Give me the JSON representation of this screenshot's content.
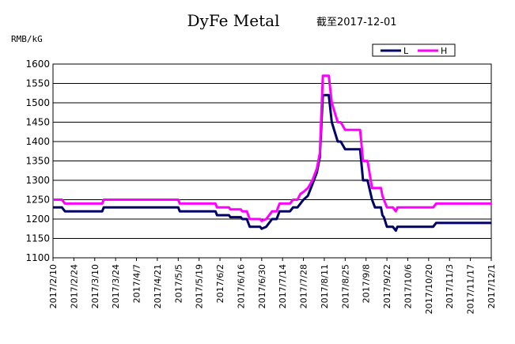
{
  "chart_data": {
    "type": "line",
    "title": "DyFe Metal",
    "subtitle": "截至2017-12-01",
    "ylabel": "RMB/kG",
    "ylim": [
      1100,
      1600
    ],
    "y_ticks": [
      "1600",
      "1550",
      "1500",
      "1450",
      "1400",
      "1350",
      "1300",
      "1250",
      "1200",
      "1150",
      "1100"
    ],
    "x_ticks": [
      "2017/2/10",
      "2017/2/24",
      "2017/3/10",
      "2017/3/24",
      "2017/4/7",
      "2017/4/21",
      "2017/5/5",
      "2017/5/19",
      "2017/6/2",
      "2017/6/16",
      "2017/6/30",
      "2017/7/14",
      "2017/7/28",
      "2017/8/11",
      "2017/8/25",
      "2017/9/8",
      "2017/9/22",
      "2017/10/6",
      "2017/10/20",
      "2017/11/3",
      "2017/11/17",
      "2017/12/1"
    ],
    "grid": "horizontal",
    "legend_position": "top-right",
    "series": [
      {
        "name": "L",
        "color": "#000066",
        "points": [
          [
            "2017/2/10",
            1230
          ],
          [
            "2017/2/16",
            1230
          ],
          [
            "2017/2/18",
            1220
          ],
          [
            "2017/3/15",
            1220
          ],
          [
            "2017/3/16",
            1230
          ],
          [
            "2017/5/5",
            1230
          ],
          [
            "2017/5/6",
            1220
          ],
          [
            "2017/5/30",
            1220
          ],
          [
            "2017/5/31",
            1210
          ],
          [
            "2017/6/8",
            1210
          ],
          [
            "2017/6/9",
            1205
          ],
          [
            "2017/6/16",
            1205
          ],
          [
            "2017/6/17",
            1200
          ],
          [
            "2017/6/20",
            1200
          ],
          [
            "2017/6/22",
            1180
          ],
          [
            "2017/6/29",
            1180
          ],
          [
            "2017/6/30",
            1175
          ],
          [
            "2017/7/3",
            1180
          ],
          [
            "2017/7/5",
            1190
          ],
          [
            "2017/7/7",
            1200
          ],
          [
            "2017/7/10",
            1200
          ],
          [
            "2017/7/12",
            1220
          ],
          [
            "2017/7/19",
            1220
          ],
          [
            "2017/7/21",
            1230
          ],
          [
            "2017/7/24",
            1230
          ],
          [
            "2017/7/26",
            1240
          ],
          [
            "2017/7/28",
            1250
          ],
          [
            "2017/7/31",
            1260
          ],
          [
            "2017/8/3",
            1290
          ],
          [
            "2017/8/6",
            1320
          ],
          [
            "2017/8/8",
            1360
          ],
          [
            "2017/8/10",
            1520
          ],
          [
            "2017/8/14",
            1520
          ],
          [
            "2017/8/16",
            1450
          ],
          [
            "2017/8/20",
            1400
          ],
          [
            "2017/8/22",
            1400
          ],
          [
            "2017/8/25",
            1380
          ],
          [
            "2017/9/4",
            1380
          ],
          [
            "2017/9/6",
            1300
          ],
          [
            "2017/9/9",
            1300
          ],
          [
            "2017/9/12",
            1250
          ],
          [
            "2017/9/14",
            1230
          ],
          [
            "2017/9/18",
            1230
          ],
          [
            "2017/9/19",
            1210
          ],
          [
            "2017/9/20",
            1205
          ],
          [
            "2017/9/22",
            1180
          ],
          [
            "2017/9/26",
            1180
          ],
          [
            "2017/9/28",
            1170
          ],
          [
            "2017/9/29",
            1180
          ],
          [
            "2017/10/23",
            1180
          ],
          [
            "2017/10/25",
            1190
          ],
          [
            "2017/12/1",
            1190
          ]
        ]
      },
      {
        "name": "H",
        "color": "#ff00ff",
        "points": [
          [
            "2017/2/10",
            1250
          ],
          [
            "2017/2/16",
            1250
          ],
          [
            "2017/2/18",
            1240
          ],
          [
            "2017/3/15",
            1240
          ],
          [
            "2017/3/16",
            1250
          ],
          [
            "2017/5/5",
            1250
          ],
          [
            "2017/5/6",
            1240
          ],
          [
            "2017/5/30",
            1240
          ],
          [
            "2017/5/31",
            1230
          ],
          [
            "2017/6/8",
            1230
          ],
          [
            "2017/6/9",
            1225
          ],
          [
            "2017/6/16",
            1225
          ],
          [
            "2017/6/17",
            1220
          ],
          [
            "2017/6/20",
            1220
          ],
          [
            "2017/6/22",
            1200
          ],
          [
            "2017/6/29",
            1200
          ],
          [
            "2017/6/30",
            1195
          ],
          [
            "2017/7/3",
            1200
          ],
          [
            "2017/7/5",
            1210
          ],
          [
            "2017/7/7",
            1220
          ],
          [
            "2017/7/10",
            1220
          ],
          [
            "2017/7/12",
            1240
          ],
          [
            "2017/7/19",
            1240
          ],
          [
            "2017/7/21",
            1250
          ],
          [
            "2017/7/24",
            1250
          ],
          [
            "2017/7/26",
            1265
          ],
          [
            "2017/7/28",
            1270
          ],
          [
            "2017/7/31",
            1280
          ],
          [
            "2017/8/3",
            1300
          ],
          [
            "2017/8/6",
            1330
          ],
          [
            "2017/8/8",
            1370
          ],
          [
            "2017/8/10",
            1570
          ],
          [
            "2017/8/14",
            1570
          ],
          [
            "2017/8/16",
            1500
          ],
          [
            "2017/8/20",
            1450
          ],
          [
            "2017/8/22",
            1450
          ],
          [
            "2017/8/25",
            1430
          ],
          [
            "2017/9/4",
            1430
          ],
          [
            "2017/9/6",
            1350
          ],
          [
            "2017/9/9",
            1350
          ],
          [
            "2017/9/12",
            1280
          ],
          [
            "2017/9/18",
            1280
          ],
          [
            "2017/9/19",
            1260
          ],
          [
            "2017/9/20",
            1250
          ],
          [
            "2017/9/22",
            1230
          ],
          [
            "2017/9/26",
            1230
          ],
          [
            "2017/9/28",
            1220
          ],
          [
            "2017/9/29",
            1230
          ],
          [
            "2017/10/23",
            1230
          ],
          [
            "2017/10/25",
            1240
          ],
          [
            "2017/12/1",
            1240
          ]
        ]
      }
    ]
  }
}
